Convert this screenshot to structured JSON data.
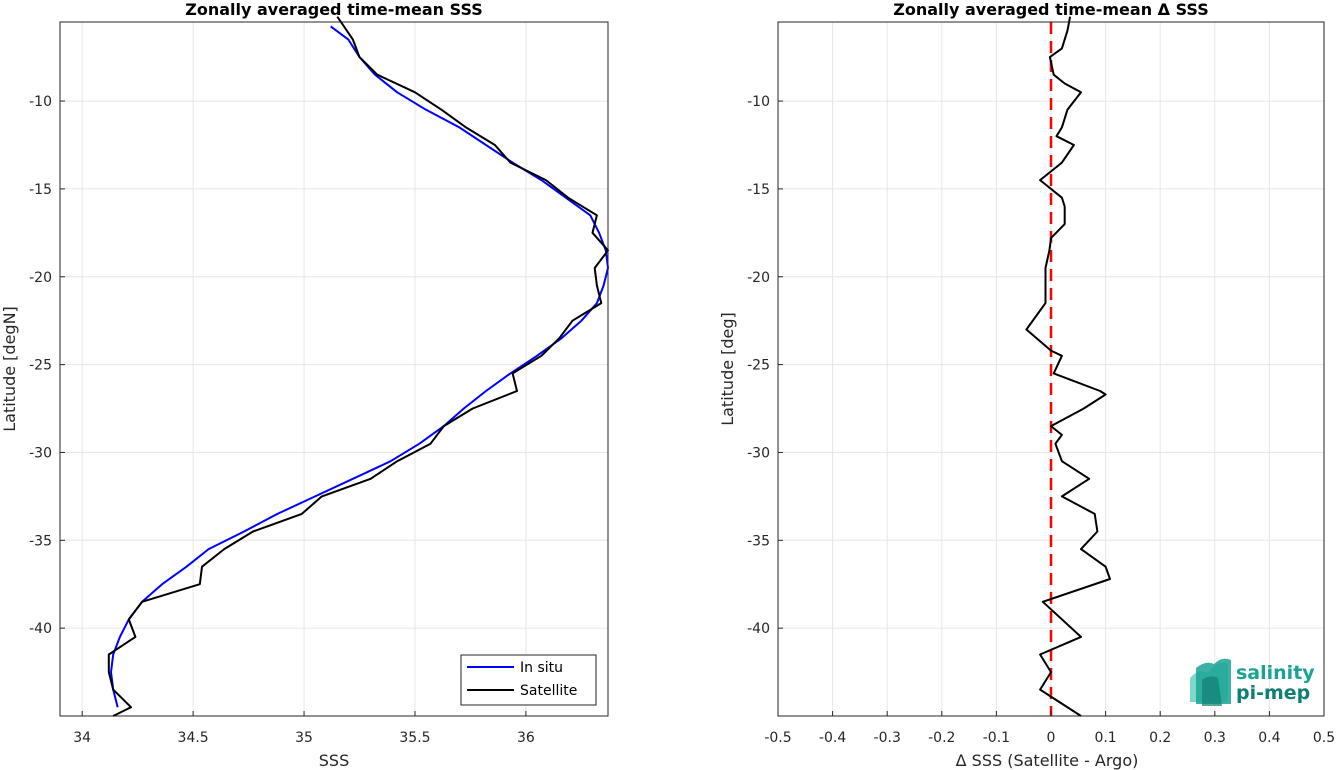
{
  "chart_data": [
    {
      "type": "line",
      "title": "Zonally averaged time-mean SSS",
      "xlabel": "SSS",
      "ylabel": "Latitude [degN]",
      "xlim": [
        33.9,
        36.37
      ],
      "ylim": [
        -45,
        -5.5
      ],
      "xticks": [
        34,
        34.5,
        35,
        35.5,
        36
      ],
      "xtick_labels": [
        "34",
        "34.5",
        "35",
        "35.5",
        "36"
      ],
      "yticks": [
        -10,
        -15,
        -20,
        -25,
        -30,
        -35,
        -40
      ],
      "ytick_labels": [
        "-10",
        "-15",
        "-20",
        "-25",
        "-30",
        "-35",
        "-40"
      ],
      "grid": true,
      "legend": {
        "placement": "bottom-right",
        "entries": [
          "In situ",
          "Satellite"
        ]
      },
      "series": [
        {
          "name": "In situ",
          "color": "#0000ff",
          "points": [
            [
              35.12,
              -5.75
            ],
            [
              35.2,
              -6.5
            ],
            [
              35.25,
              -7.5
            ],
            [
              35.32,
              -8.5
            ],
            [
              35.42,
              -9.5
            ],
            [
              35.55,
              -10.5
            ],
            [
              35.7,
              -11.5
            ],
            [
              35.82,
              -12.5
            ],
            [
              35.94,
              -13.5
            ],
            [
              36.07,
              -14.5
            ],
            [
              36.18,
              -15.5
            ],
            [
              36.29,
              -16.5
            ],
            [
              36.33,
              -17.5
            ],
            [
              36.36,
              -18.5
            ],
            [
              36.37,
              -19.5
            ],
            [
              36.35,
              -20.5
            ],
            [
              36.32,
              -21.5
            ],
            [
              36.25,
              -22.5
            ],
            [
              36.16,
              -23.5
            ],
            [
              36.05,
              -24.5
            ],
            [
              35.93,
              -25.5
            ],
            [
              35.82,
              -26.5
            ],
            [
              35.72,
              -27.5
            ],
            [
              35.63,
              -28.5
            ],
            [
              35.52,
              -29.5
            ],
            [
              35.39,
              -30.5
            ],
            [
              35.22,
              -31.5
            ],
            [
              35.05,
              -32.5
            ],
            [
              34.88,
              -33.5
            ],
            [
              34.73,
              -34.5
            ],
            [
              34.57,
              -35.5
            ],
            [
              34.47,
              -36.5
            ],
            [
              34.36,
              -37.5
            ],
            [
              34.27,
              -38.5
            ],
            [
              34.21,
              -39.5
            ],
            [
              34.17,
              -40.5
            ],
            [
              34.14,
              -41.5
            ],
            [
              34.13,
              -42.5
            ],
            [
              34.14,
              -43.5
            ],
            [
              34.16,
              -44.5
            ]
          ]
        },
        {
          "name": "Satellite",
          "color": "#000000",
          "points": [
            [
              35.15,
              -5.2
            ],
            [
              35.18,
              -5.75
            ],
            [
              35.22,
              -6.5
            ],
            [
              35.25,
              -7.5
            ],
            [
              35.33,
              -8.5
            ],
            [
              35.5,
              -9.5
            ],
            [
              35.62,
              -10.5
            ],
            [
              35.73,
              -11.5
            ],
            [
              35.86,
              -12.5
            ],
            [
              35.93,
              -13.5
            ],
            [
              36.09,
              -14.5
            ],
            [
              36.19,
              -15.5
            ],
            [
              36.32,
              -16.5
            ],
            [
              36.3,
              -17.5
            ],
            [
              36.37,
              -18.5
            ],
            [
              36.31,
              -19.5
            ],
            [
              36.32,
              -20.5
            ],
            [
              36.34,
              -21.5
            ],
            [
              36.21,
              -22.5
            ],
            [
              36.15,
              -23.5
            ],
            [
              36.07,
              -24.5
            ],
            [
              35.94,
              -25.5
            ],
            [
              35.96,
              -26.5
            ],
            [
              35.76,
              -27.5
            ],
            [
              35.63,
              -28.5
            ],
            [
              35.57,
              -29.5
            ],
            [
              35.42,
              -30.5
            ],
            [
              35.3,
              -31.5
            ],
            [
              35.08,
              -32.5
            ],
            [
              34.99,
              -33.5
            ],
            [
              34.77,
              -34.5
            ],
            [
              34.64,
              -35.5
            ],
            [
              34.54,
              -36.5
            ],
            [
              34.53,
              -37.5
            ],
            [
              34.27,
              -38.5
            ],
            [
              34.21,
              -39.5
            ],
            [
              34.24,
              -40.5
            ],
            [
              34.12,
              -41.5
            ],
            [
              34.12,
              -42.5
            ],
            [
              34.14,
              -43.5
            ],
            [
              34.22,
              -44.5
            ],
            [
              34.14,
              -45
            ]
          ]
        }
      ]
    },
    {
      "type": "line",
      "title": "Zonally averaged time-mean Δ SSS",
      "xlabel": "Δ SSS (Satellite - Argo)",
      "ylabel": "Latitude [deg]",
      "xlim": [
        -0.5,
        0.5
      ],
      "ylim": [
        -45,
        -5.5
      ],
      "xticks": [
        -0.5,
        -0.4,
        -0.3,
        -0.2,
        -0.1,
        0,
        0.1,
        0.2,
        0.3,
        0.4,
        0.5
      ],
      "xtick_labels": [
        "-0.5",
        "-0.4",
        "-0.3",
        "-0.2",
        "-0.1",
        "0",
        "0.1",
        "0.2",
        "0.3",
        "0.4",
        "0.5"
      ],
      "yticks": [
        -10,
        -15,
        -20,
        -25,
        -30,
        -35,
        -40
      ],
      "ytick_labels": [
        "-10",
        "-15",
        "-20",
        "-25",
        "-30",
        "-35",
        "-40"
      ],
      "grid": true,
      "reference_line": {
        "x": 0,
        "color": "#ff0000",
        "style": "dashed"
      },
      "series": [
        {
          "color": "#000000",
          "points": [
            [
              0.035,
              -5.2
            ],
            [
              0.03,
              -6
            ],
            [
              0.02,
              -7
            ],
            [
              -0.002,
              -7.5
            ],
            [
              0.005,
              -8.5
            ],
            [
              0.025,
              -9
            ],
            [
              0.055,
              -9.5
            ],
            [
              0.03,
              -10.5
            ],
            [
              0.02,
              -11.5
            ],
            [
              0.01,
              -12
            ],
            [
              0.042,
              -12.5
            ],
            [
              0.02,
              -13.5
            ],
            [
              -0.02,
              -14.5
            ],
            [
              0.02,
              -15.5
            ],
            [
              0.025,
              -16
            ],
            [
              0.025,
              -17
            ],
            [
              0.0,
              -17.8
            ],
            [
              -0.003,
              -18.5
            ],
            [
              -0.01,
              -19.5
            ],
            [
              -0.01,
              -20.5
            ],
            [
              -0.01,
              -21.5
            ],
            [
              -0.045,
              -23
            ],
            [
              0.0,
              -24.2
            ],
            [
              0.02,
              -24.5
            ],
            [
              0.005,
              -25.5
            ],
            [
              0.09,
              -26.5
            ],
            [
              0.1,
              -26.7
            ],
            [
              0.06,
              -27.5
            ],
            [
              0.0,
              -28.5
            ],
            [
              0.02,
              -29
            ],
            [
              0.008,
              -29.5
            ],
            [
              0.02,
              -30.5
            ],
            [
              0.07,
              -31.5
            ],
            [
              0.02,
              -32.5
            ],
            [
              0.08,
              -33.5
            ],
            [
              0.085,
              -34.5
            ],
            [
              0.055,
              -35.5
            ],
            [
              0.1,
              -36.5
            ],
            [
              0.108,
              -37.2
            ],
            [
              -0.015,
              -38.5
            ],
            [
              0.055,
              -40.5
            ],
            [
              -0.02,
              -41.5
            ],
            [
              0.0,
              -42.5
            ],
            [
              -0.02,
              -43.5
            ],
            [
              0.055,
              -45
            ]
          ]
        }
      ],
      "watermark": {
        "line1": "salinity",
        "line2": "pi-mep",
        "colors": [
          "#1aa394",
          "#7fd9c8",
          "#0f7f74"
        ]
      }
    }
  ]
}
